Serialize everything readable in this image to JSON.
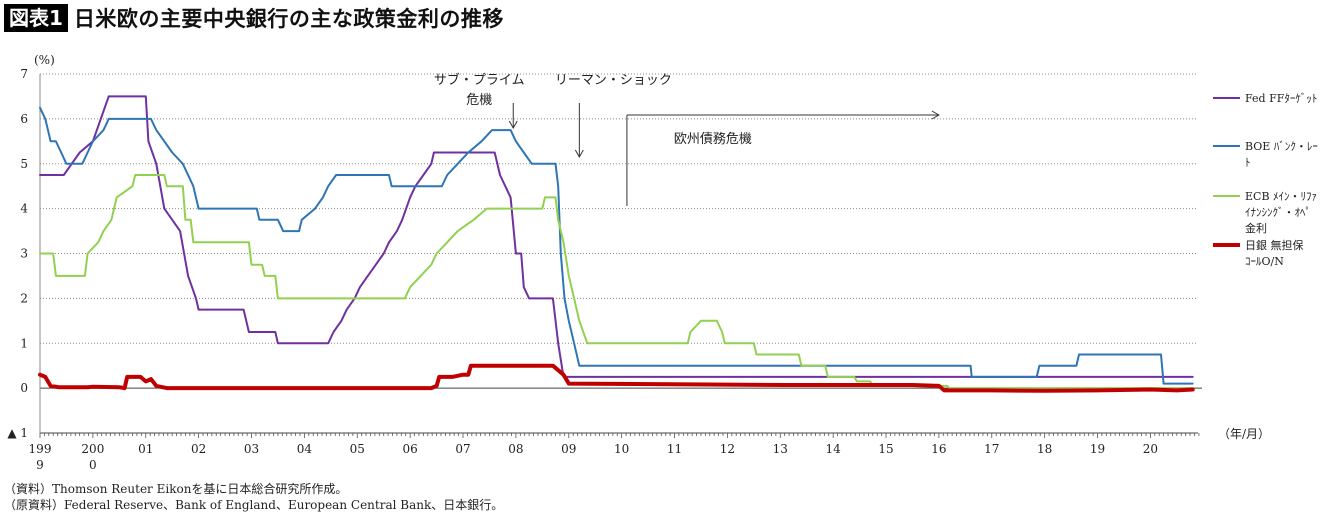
{
  "header": {
    "badge": "図表1",
    "title": "日米欧の主要中央銀行の主な政策金利の推移"
  },
  "footer": {
    "source": "（資料）Thomson Reuter Eikonを基に日本総合研究所作成。",
    "original_source": "（原資料）Federal Reserve、Bank of England、European Central Bank、日本銀行。"
  },
  "chart_data": {
    "type": "line",
    "yunit": "(%)",
    "xunit": "（年/月）",
    "ylim": [
      -1,
      7
    ],
    "yticks": [
      7,
      6,
      5,
      4,
      3,
      2,
      1,
      0
    ],
    "neg_tick_label": "▲ 1",
    "xlim": [
      1999.0,
      2020.9
    ],
    "grid": "horizontal dotted",
    "legend_position": "right",
    "xtick_labels": [
      {
        "x": 1999.0,
        "lines": [
          "199",
          "9"
        ]
      },
      {
        "x": 2000.0,
        "lines": [
          "200",
          "0"
        ]
      },
      {
        "x": 2001.0,
        "lines": [
          "01"
        ]
      },
      {
        "x": 2002.0,
        "lines": [
          "02"
        ]
      },
      {
        "x": 2003.0,
        "lines": [
          "03"
        ]
      },
      {
        "x": 2004.0,
        "lines": [
          "04"
        ]
      },
      {
        "x": 2005.0,
        "lines": [
          "05"
        ]
      },
      {
        "x": 2006.0,
        "lines": [
          "06"
        ]
      },
      {
        "x": 2007.0,
        "lines": [
          "07"
        ]
      },
      {
        "x": 2008.0,
        "lines": [
          "08"
        ]
      },
      {
        "x": 2009.0,
        "lines": [
          "09"
        ]
      },
      {
        "x": 2010.0,
        "lines": [
          "10"
        ]
      },
      {
        "x": 2011.0,
        "lines": [
          "11"
        ]
      },
      {
        "x": 2012.0,
        "lines": [
          "12"
        ]
      },
      {
        "x": 2013.0,
        "lines": [
          "13"
        ]
      },
      {
        "x": 2014.0,
        "lines": [
          "14"
        ]
      },
      {
        "x": 2015.0,
        "lines": [
          "15"
        ]
      },
      {
        "x": 2016.0,
        "lines": [
          "16"
        ]
      },
      {
        "x": 2017.0,
        "lines": [
          "17"
        ]
      },
      {
        "x": 2018.0,
        "lines": [
          "18"
        ]
      },
      {
        "x": 2019.0,
        "lines": [
          "19"
        ]
      },
      {
        "x": 2020.0,
        "lines": [
          "20"
        ]
      }
    ],
    "annotations": [
      {
        "lines": [
          "サブ・プライム",
          "危機"
        ],
        "arrow_x": 2007.95
      },
      {
        "lines": [
          "リーマン・ショック"
        ],
        "arrow_x": 2009.2
      },
      {
        "lines": [
          "欧州債務危機"
        ],
        "bracket_x0": 2010.1,
        "bracket_x1": 2016.0
      }
    ],
    "series": [
      {
        "name": "Fed FFﾀｰｹﾞｯﾄ",
        "legend_lines": [
          "Fed FFﾀｰｹﾞｯﾄ"
        ],
        "color": "#7030A0",
        "width": 2,
        "points": [
          [
            1999.0,
            4.75
          ],
          [
            1999.45,
            4.75
          ],
          [
            1999.6,
            5.0
          ],
          [
            1999.75,
            5.25
          ],
          [
            2000.0,
            5.5
          ],
          [
            2000.3,
            6.5
          ],
          [
            2001.0,
            6.5
          ],
          [
            2001.05,
            5.5
          ],
          [
            2001.2,
            5.0
          ],
          [
            2001.35,
            4.0
          ],
          [
            2001.5,
            3.75
          ],
          [
            2001.65,
            3.5
          ],
          [
            2001.8,
            2.5
          ],
          [
            2001.95,
            2.0
          ],
          [
            2002.0,
            1.75
          ],
          [
            2002.85,
            1.75
          ],
          [
            2002.95,
            1.25
          ],
          [
            2003.45,
            1.25
          ],
          [
            2003.5,
            1.0
          ],
          [
            2004.45,
            1.0
          ],
          [
            2004.55,
            1.25
          ],
          [
            2004.7,
            1.5
          ],
          [
            2004.8,
            1.75
          ],
          [
            2004.95,
            2.0
          ],
          [
            2005.05,
            2.25
          ],
          [
            2005.2,
            2.5
          ],
          [
            2005.35,
            2.75
          ],
          [
            2005.5,
            3.0
          ],
          [
            2005.6,
            3.25
          ],
          [
            2005.75,
            3.5
          ],
          [
            2005.85,
            3.75
          ],
          [
            2006.0,
            4.25
          ],
          [
            2006.1,
            4.5
          ],
          [
            2006.25,
            4.75
          ],
          [
            2006.4,
            5.0
          ],
          [
            2006.45,
            5.25
          ],
          [
            2007.6,
            5.25
          ],
          [
            2007.7,
            4.75
          ],
          [
            2007.8,
            4.5
          ],
          [
            2007.9,
            4.25
          ],
          [
            2008.0,
            3.0
          ],
          [
            2008.1,
            3.0
          ],
          [
            2008.15,
            2.25
          ],
          [
            2008.25,
            2.0
          ],
          [
            2008.7,
            2.0
          ],
          [
            2008.8,
            1.0
          ],
          [
            2008.9,
            0.25
          ],
          [
            2020.2,
            0.25
          ],
          [
            2020.3,
            0.25
          ],
          [
            2020.8,
            0.25
          ]
        ]
      },
      {
        "name": "BOE ﾊﾞﾝｸ・ﾚｰﾄ",
        "legend_lines": [
          "BOE ﾊﾞﾝｸ・ﾚｰ",
          "ﾄ"
        ],
        "color": "#2E75B6",
        "width": 2,
        "points": [
          [
            1999.0,
            6.25
          ],
          [
            1999.1,
            6.0
          ],
          [
            1999.2,
            5.5
          ],
          [
            1999.3,
            5.5
          ],
          [
            1999.4,
            5.25
          ],
          [
            1999.5,
            5.0
          ],
          [
            1999.8,
            5.0
          ],
          [
            1999.9,
            5.25
          ],
          [
            2000.0,
            5.5
          ],
          [
            2000.2,
            5.75
          ],
          [
            2000.3,
            6.0
          ],
          [
            2001.1,
            6.0
          ],
          [
            2001.2,
            5.75
          ],
          [
            2001.35,
            5.5
          ],
          [
            2001.5,
            5.25
          ],
          [
            2001.7,
            5.0
          ],
          [
            2001.8,
            4.75
          ],
          [
            2001.9,
            4.5
          ],
          [
            2002.0,
            4.0
          ],
          [
            2003.1,
            4.0
          ],
          [
            2003.15,
            3.75
          ],
          [
            2003.5,
            3.75
          ],
          [
            2003.6,
            3.5
          ],
          [
            2003.9,
            3.5
          ],
          [
            2003.95,
            3.75
          ],
          [
            2004.2,
            4.0
          ],
          [
            2004.35,
            4.25
          ],
          [
            2004.45,
            4.5
          ],
          [
            2004.6,
            4.75
          ],
          [
            2005.6,
            4.75
          ],
          [
            2005.65,
            4.5
          ],
          [
            2006.6,
            4.5
          ],
          [
            2006.7,
            4.75
          ],
          [
            2006.9,
            5.0
          ],
          [
            2007.1,
            5.25
          ],
          [
            2007.35,
            5.5
          ],
          [
            2007.55,
            5.75
          ],
          [
            2007.9,
            5.75
          ],
          [
            2008.0,
            5.5
          ],
          [
            2008.15,
            5.25
          ],
          [
            2008.3,
            5.0
          ],
          [
            2008.75,
            5.0
          ],
          [
            2008.8,
            4.5
          ],
          [
            2008.85,
            3.0
          ],
          [
            2008.92,
            2.0
          ],
          [
            2009.0,
            1.5
          ],
          [
            2009.1,
            1.0
          ],
          [
            2009.2,
            0.5
          ],
          [
            2016.6,
            0.5
          ],
          [
            2016.62,
            0.25
          ],
          [
            2017.85,
            0.25
          ],
          [
            2017.9,
            0.5
          ],
          [
            2018.6,
            0.5
          ],
          [
            2018.65,
            0.75
          ],
          [
            2020.2,
            0.75
          ],
          [
            2020.25,
            0.1
          ],
          [
            2020.8,
            0.1
          ]
        ]
      },
      {
        "name": "ECB ﾒｲﾝ・ﾘﾌｧｲﾅﾝｼﾝｸﾞ・ｵﾍﾟ金利",
        "legend_lines": [
          "ECB ﾒｲﾝ・ﾘﾌｧ",
          "ｲﾅﾝｼﾝｸﾞ・ｵﾍﾟ",
          "金利"
        ],
        "color": "#92D050",
        "width": 2,
        "points": [
          [
            1999.0,
            3.0
          ],
          [
            1999.25,
            3.0
          ],
          [
            1999.3,
            2.5
          ],
          [
            1999.85,
            2.5
          ],
          [
            1999.9,
            3.0
          ],
          [
            2000.1,
            3.25
          ],
          [
            2000.2,
            3.5
          ],
          [
            2000.35,
            3.75
          ],
          [
            2000.45,
            4.25
          ],
          [
            2000.75,
            4.5
          ],
          [
            2000.8,
            4.75
          ],
          [
            2001.35,
            4.75
          ],
          [
            2001.4,
            4.5
          ],
          [
            2001.7,
            4.5
          ],
          [
            2001.75,
            3.75
          ],
          [
            2001.85,
            3.75
          ],
          [
            2001.9,
            3.25
          ],
          [
            2002.95,
            3.25
          ],
          [
            2003.0,
            2.75
          ],
          [
            2003.2,
            2.75
          ],
          [
            2003.25,
            2.5
          ],
          [
            2003.45,
            2.5
          ],
          [
            2003.5,
            2.0
          ],
          [
            2005.9,
            2.0
          ],
          [
            2006.0,
            2.25
          ],
          [
            2006.2,
            2.5
          ],
          [
            2006.4,
            2.75
          ],
          [
            2006.5,
            3.0
          ],
          [
            2006.7,
            3.25
          ],
          [
            2006.9,
            3.5
          ],
          [
            2007.2,
            3.75
          ],
          [
            2007.45,
            4.0
          ],
          [
            2008.5,
            4.0
          ],
          [
            2008.55,
            4.25
          ],
          [
            2008.75,
            4.25
          ],
          [
            2008.8,
            3.75
          ],
          [
            2008.9,
            3.25
          ],
          [
            2009.0,
            2.5
          ],
          [
            2009.1,
            2.0
          ],
          [
            2009.2,
            1.5
          ],
          [
            2009.35,
            1.0
          ],
          [
            2011.25,
            1.0
          ],
          [
            2011.3,
            1.25
          ],
          [
            2011.5,
            1.5
          ],
          [
            2011.8,
            1.5
          ],
          [
            2011.9,
            1.25
          ],
          [
            2011.95,
            1.0
          ],
          [
            2012.5,
            1.0
          ],
          [
            2012.55,
            0.75
          ],
          [
            2013.35,
            0.75
          ],
          [
            2013.4,
            0.5
          ],
          [
            2013.85,
            0.5
          ],
          [
            2013.9,
            0.25
          ],
          [
            2014.4,
            0.25
          ],
          [
            2014.45,
            0.15
          ],
          [
            2014.7,
            0.15
          ],
          [
            2014.75,
            0.05
          ],
          [
            2016.15,
            0.05
          ],
          [
            2016.2,
            0.0
          ],
          [
            2020.8,
            0.0
          ]
        ]
      },
      {
        "name": "日銀 無担保コールO/N",
        "legend_lines": [
          "日銀 無担保",
          "ｺｰﾙO/N"
        ],
        "color": "#C00000",
        "width": 4,
        "points": [
          [
            1999.0,
            0.3
          ],
          [
            1999.1,
            0.25
          ],
          [
            1999.2,
            0.05
          ],
          [
            1999.35,
            0.02
          ],
          [
            1999.9,
            0.02
          ],
          [
            2000.0,
            0.03
          ],
          [
            2000.5,
            0.02
          ],
          [
            2000.6,
            0.0
          ],
          [
            2000.65,
            0.25
          ],
          [
            2000.9,
            0.25
          ],
          [
            2001.0,
            0.15
          ],
          [
            2001.1,
            0.2
          ],
          [
            2001.2,
            0.05
          ],
          [
            2001.4,
            0.0
          ],
          [
            2006.4,
            0.0
          ],
          [
            2006.5,
            0.05
          ],
          [
            2006.55,
            0.25
          ],
          [
            2006.8,
            0.25
          ],
          [
            2007.0,
            0.3
          ],
          [
            2007.1,
            0.3
          ],
          [
            2007.15,
            0.5
          ],
          [
            2007.3,
            0.5
          ],
          [
            2008.7,
            0.5
          ],
          [
            2008.8,
            0.4
          ],
          [
            2008.9,
            0.3
          ],
          [
            2009.0,
            0.1
          ],
          [
            2013.1,
            0.07
          ],
          [
            2015.5,
            0.07
          ],
          [
            2016.0,
            0.05
          ],
          [
            2016.1,
            -0.05
          ],
          [
            2017.0,
            -0.05
          ],
          [
            2018.0,
            -0.06
          ],
          [
            2019.0,
            -0.05
          ],
          [
            2020.0,
            -0.03
          ],
          [
            2020.5,
            -0.05
          ],
          [
            2020.8,
            -0.03
          ]
        ]
      }
    ]
  }
}
